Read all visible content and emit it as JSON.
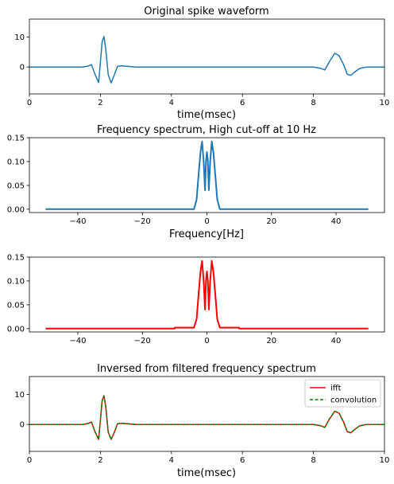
{
  "chart_data": [
    {
      "type": "line",
      "title": "Original spike waveform",
      "xlabel": "time(msec)",
      "ylabel": "",
      "xlim": [
        0,
        10
      ],
      "ylim": [
        -9,
        16
      ],
      "xticks": [
        0,
        2,
        4,
        6,
        8,
        10
      ],
      "yticks": [
        0,
        10
      ],
      "ytick_labels": [
        "0",
        "10"
      ],
      "grid": false,
      "series": [
        {
          "color": "#1f77b4",
          "x": [
            0,
            1.5,
            1.65,
            1.75,
            1.85,
            1.95,
            2.05,
            2.1,
            2.15,
            2.22,
            2.3,
            2.38,
            2.48,
            2.6,
            3.0,
            5.0,
            7.0,
            8.0,
            8.2,
            8.32,
            8.45,
            8.6,
            8.72,
            8.85,
            8.95,
            9.05,
            9.15,
            9.3,
            9.5,
            10
          ],
          "y": [
            0,
            0,
            0.3,
            0.8,
            -2.5,
            -5.2,
            8.5,
            10.2,
            6,
            -2.5,
            -5.3,
            -3,
            0.2,
            0.4,
            0,
            0,
            0,
            0,
            -0.4,
            -1,
            1.8,
            4.6,
            3.8,
            0.8,
            -2.4,
            -2.8,
            -1.8,
            -0.5,
            0,
            0
          ]
        }
      ]
    },
    {
      "type": "line",
      "title": "Frequency spectrum, High cut-off at 10 Hz",
      "xlabel": "Frequency[Hz]",
      "ylabel": "",
      "xlim": [
        -55,
        55
      ],
      "ylim": [
        -0.007,
        0.15
      ],
      "xticks": [
        -40,
        -20,
        0,
        20,
        40
      ],
      "xtick_labels": [
        "−40",
        "−20",
        "0",
        "20",
        "40"
      ],
      "yticks": [
        0.0,
        0.05,
        0.1,
        0.15
      ],
      "ytick_labels": [
        "0.00",
        "0.05",
        "0.10",
        "0.15"
      ],
      "grid": false,
      "series": [
        {
          "color": "#1f77b4",
          "x": [
            -50,
            -4,
            -3.2,
            -2.6,
            -2.0,
            -1.5,
            -1.0,
            -0.6,
            -0.3,
            0,
            0.3,
            0.6,
            1.0,
            1.5,
            2.0,
            2.6,
            3.2,
            4,
            50
          ],
          "y": [
            0,
            0,
            0.02,
            0.07,
            0.12,
            0.142,
            0.1,
            0.04,
            0.1,
            0.12,
            0.1,
            0.04,
            0.1,
            0.142,
            0.12,
            0.07,
            0.02,
            0,
            0
          ]
        }
      ]
    },
    {
      "type": "line",
      "title": "",
      "xlabel": "",
      "ylabel": "",
      "xlim": [
        -55,
        55
      ],
      "ylim": [
        -0.007,
        0.15
      ],
      "xticks": [
        -40,
        -20,
        0,
        20,
        40
      ],
      "xtick_labels": [
        "−40",
        "−20",
        "0",
        "20",
        "40"
      ],
      "yticks": [
        0.0,
        0.05,
        0.1,
        0.15
      ],
      "ytick_labels": [
        "0.00",
        "0.05",
        "0.10",
        "0.15"
      ],
      "grid": false,
      "series": [
        {
          "color": "#ff0000",
          "x": [
            -50,
            -10,
            -10,
            -4,
            -3.2,
            -2.6,
            -2.0,
            -1.5,
            -1.0,
            -0.6,
            -0.3,
            0,
            0.3,
            0.6,
            1.0,
            1.5,
            2.0,
            2.6,
            3.2,
            4,
            10,
            10,
            50
          ],
          "y": [
            0,
            0,
            0.002,
            0.002,
            0.02,
            0.07,
            0.12,
            0.142,
            0.1,
            0.04,
            0.1,
            0.12,
            0.1,
            0.04,
            0.1,
            0.142,
            0.12,
            0.07,
            0.02,
            0.002,
            0.002,
            0,
            0
          ]
        }
      ]
    },
    {
      "type": "line",
      "title": "Inversed from filtered frequency spectrum",
      "xlabel": "time(msec)",
      "ylabel": "",
      "xlim": [
        0,
        10
      ],
      "ylim": [
        -9,
        16
      ],
      "xticks": [
        0,
        2,
        4,
        6,
        8,
        10
      ],
      "yticks": [
        0,
        10
      ],
      "ytick_labels": [
        "0",
        "10"
      ],
      "grid": false,
      "legend": "top-right",
      "series": [
        {
          "name": "ifft",
          "color": "#ff0000",
          "style": "solid",
          "x": [
            0,
            1.5,
            1.65,
            1.75,
            1.85,
            1.95,
            2.05,
            2.1,
            2.15,
            2.22,
            2.3,
            2.38,
            2.48,
            2.6,
            3.0,
            5.0,
            7.0,
            8.0,
            8.2,
            8.32,
            8.45,
            8.6,
            8.72,
            8.85,
            8.95,
            9.05,
            9.15,
            9.3,
            9.5,
            10
          ],
          "y": [
            0,
            0,
            0.3,
            0.8,
            -2.5,
            -5.0,
            8.0,
            9.6,
            6,
            -2.5,
            -5.0,
            -3,
            0.2,
            0.4,
            0,
            0,
            0,
            0,
            -0.4,
            -1,
            1.8,
            4.4,
            3.8,
            0.8,
            -2.4,
            -2.8,
            -1.8,
            -0.5,
            0,
            0
          ]
        },
        {
          "name": "convolution",
          "color": "#008000",
          "style": "dashed",
          "x": [
            0,
            1.5,
            1.65,
            1.75,
            1.85,
            1.95,
            2.05,
            2.1,
            2.15,
            2.22,
            2.3,
            2.38,
            2.48,
            2.6,
            3.0,
            5.0,
            7.0,
            8.0,
            8.2,
            8.32,
            8.45,
            8.6,
            8.72,
            8.85,
            8.95,
            9.05,
            9.15,
            9.3,
            9.5,
            10
          ],
          "y": [
            0,
            0,
            0.3,
            0.8,
            -2.5,
            -5.0,
            8.0,
            9.6,
            6,
            -2.5,
            -5.0,
            -3,
            0.2,
            0.4,
            0,
            0,
            0,
            0,
            -0.4,
            -1,
            1.8,
            4.4,
            3.8,
            0.8,
            -2.4,
            -2.8,
            -1.8,
            -0.5,
            0,
            0
          ]
        }
      ]
    }
  ]
}
